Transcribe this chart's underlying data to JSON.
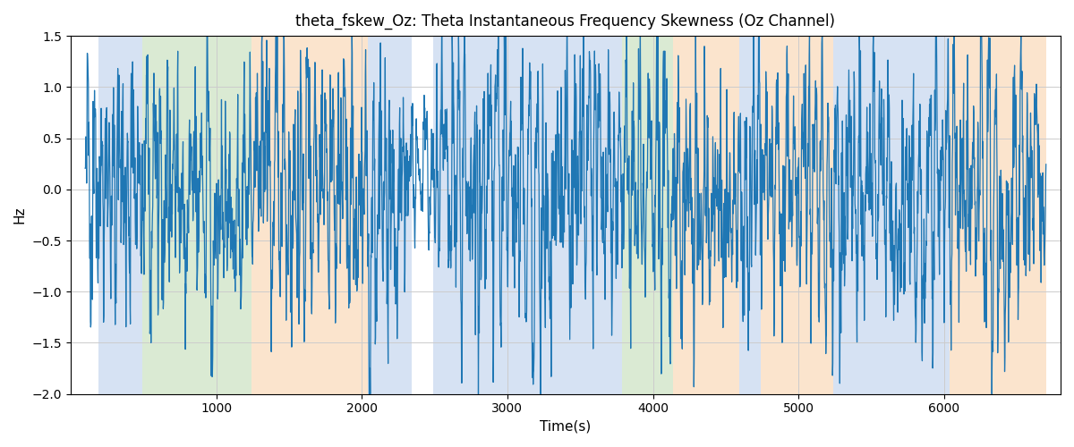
{
  "title": "theta_fskew_Oz: Theta Instantaneous Frequency Skewness (Oz Channel)",
  "xlabel": "Time(s)",
  "ylabel": "Hz",
  "xlim": [
    0,
    6800
  ],
  "ylim": [
    -2.0,
    1.5
  ],
  "line_color": "#1f77b4",
  "line_width": 0.9,
  "background_color": "#ffffff",
  "grid_color": "#cccccc",
  "yticks": [
    -2.0,
    -1.5,
    -1.0,
    -0.5,
    0.0,
    0.5,
    1.0,
    1.5
  ],
  "xticks": [
    1000,
    2000,
    3000,
    4000,
    5000,
    6000
  ],
  "colored_regions": [
    {
      "xstart": 190,
      "xend": 490,
      "color": "#aec6e8",
      "alpha": 0.5
    },
    {
      "xstart": 490,
      "xend": 1240,
      "color": "#b6d7a8",
      "alpha": 0.5
    },
    {
      "xstart": 1240,
      "xend": 2040,
      "color": "#f9cb9c",
      "alpha": 0.5
    },
    {
      "xstart": 2040,
      "xend": 2340,
      "color": "#aec6e8",
      "alpha": 0.5
    },
    {
      "xstart": 2490,
      "xend": 3790,
      "color": "#aec6e8",
      "alpha": 0.5
    },
    {
      "xstart": 3790,
      "xend": 4140,
      "color": "#b6d7a8",
      "alpha": 0.5
    },
    {
      "xstart": 4140,
      "xend": 4590,
      "color": "#f9cb9c",
      "alpha": 0.5
    },
    {
      "xstart": 4590,
      "xend": 4740,
      "color": "#aec6e8",
      "alpha": 0.5
    },
    {
      "xstart": 4740,
      "xend": 5240,
      "color": "#f9cb9c",
      "alpha": 0.5
    },
    {
      "xstart": 5240,
      "xend": 6040,
      "color": "#aec6e8",
      "alpha": 0.5
    },
    {
      "xstart": 6040,
      "xend": 6700,
      "color": "#f9cb9c",
      "alpha": 0.5
    }
  ],
  "seed": 42,
  "n_points": 3300,
  "t_start": 100,
  "t_end": 6700
}
